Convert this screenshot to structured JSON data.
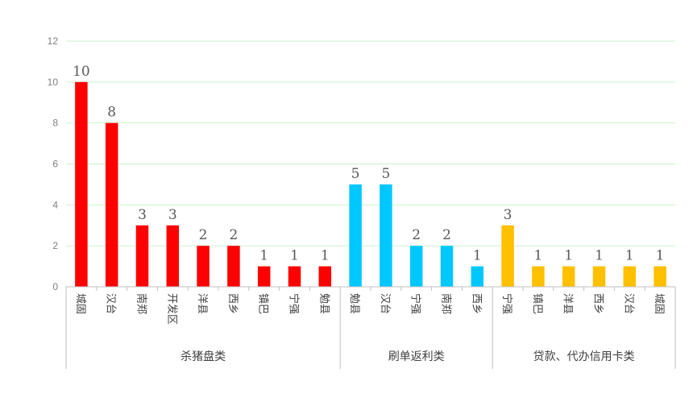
{
  "chart_data": {
    "type": "bar",
    "ylim": [
      0,
      12
    ],
    "yticks": [
      0,
      2,
      4,
      6,
      8,
      10,
      12
    ],
    "grid": true,
    "groups": [
      {
        "name": "杀猪盘类",
        "color": "#ff0000",
        "categories": [
          "城固",
          "汉台",
          "南郑",
          "开发区",
          "洋县",
          "西乡",
          "镇巴",
          "宁强",
          "勉县"
        ],
        "values": [
          10,
          8,
          3,
          3,
          2,
          2,
          1,
          1,
          1
        ]
      },
      {
        "name": "刷单返利类",
        "color": "#00c8ff",
        "categories": [
          "勉县",
          "汉台",
          "宁强",
          "南郑",
          "西乡"
        ],
        "values": [
          5,
          5,
          2,
          2,
          1
        ]
      },
      {
        "name": "贷款、代办信用卡类",
        "color": "#ffc000",
        "categories": [
          "宁强",
          "镇巴",
          "洋县",
          "西乡",
          "汉台",
          "城固"
        ],
        "values": [
          3,
          1,
          1,
          1,
          1,
          1
        ]
      }
    ]
  }
}
